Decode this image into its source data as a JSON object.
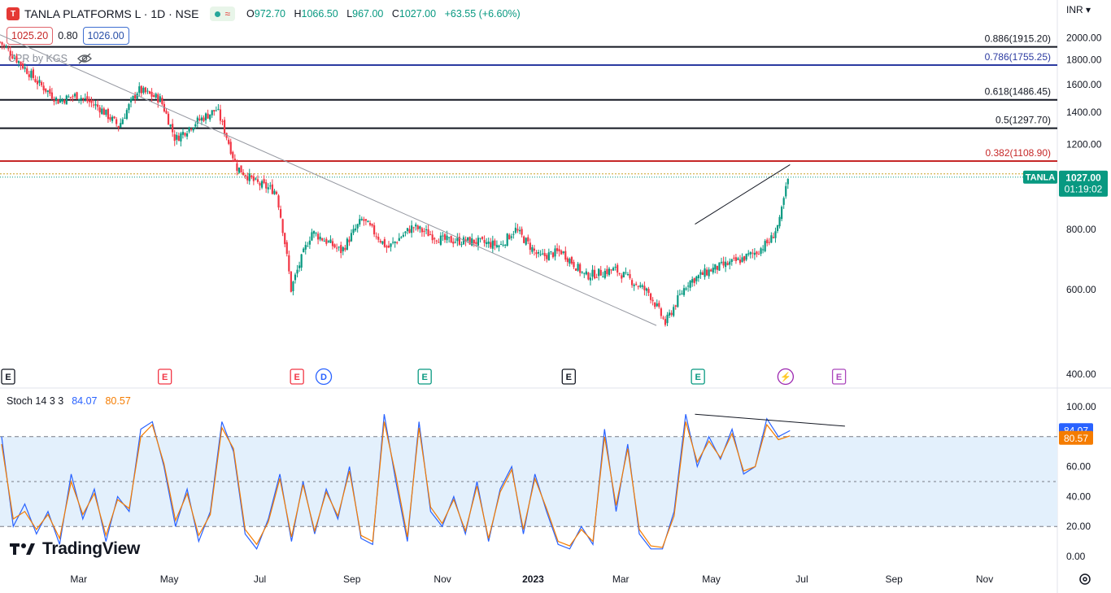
{
  "header": {
    "logo_glyph": "T",
    "symbol": "TANLA PLATFORMS L · 1D · NSE",
    "ohlc": [
      {
        "label": "O",
        "value": "972.70"
      },
      {
        "label": "H",
        "value": "1066.50"
      },
      {
        "label": "L",
        "value": "967.00"
      },
      {
        "label": "C",
        "value": "1027.00"
      }
    ],
    "change": "+63.55 (+6.60%)",
    "bid": "1025.20",
    "spread": "0.80",
    "ask": "1026.00",
    "indicator": "CPR by KGS",
    "currency": "INR"
  },
  "stoch_header": {
    "title": "Stoch 14 3 3",
    "k_value": "84.07",
    "d_value": "80.57"
  },
  "branding": "TradingView",
  "colors": {
    "up": "#089981",
    "down": "#f23645",
    "k": "#2962ff",
    "d": "#f57c00",
    "band": "#e3f0fc",
    "fib_blue": "#2b3aa1",
    "fib_red": "#c62828"
  },
  "chart_data": [
    {
      "type": "candlestick",
      "title": "TANLA PLATFORMS L · 1D · NSE",
      "ylim": [
        400,
        2200
      ],
      "y_ticks": [
        "2000.00",
        "1800.00",
        "1600.00",
        "1400.00",
        "1200.00",
        "800.00",
        "600.00",
        "400.00"
      ],
      "x_ticks": [
        "Mar",
        "May",
        "Jul",
        "Sep",
        "Nov",
        "2023",
        "Mar",
        "May",
        "Jul",
        "Sep",
        "Nov"
      ],
      "x_tick_dates": [
        "2022-03-01",
        "2022-05-01",
        "2022-07-01",
        "2022-09-01",
        "2022-11-01",
        "2023-01-01",
        "2023-03-01",
        "2023-05-01",
        "2023-07-01",
        "2023-09-01",
        "2023-11-01"
      ],
      "date_range": [
        "2022-01-07",
        "2023-12-20"
      ],
      "fib_levels": [
        {
          "label": "0.886(1915.20)",
          "value": 1915.2,
          "color": "#131722"
        },
        {
          "label": "0.786(1755.25)",
          "value": 1755.25,
          "color": "#2b3aa1"
        },
        {
          "label": "0.618(1486.45)",
          "value": 1486.45,
          "color": "#131722"
        },
        {
          "label": "0.5(1297.70)",
          "value": 1297.7,
          "color": "#131722"
        },
        {
          "label": "0.382(1108.90)",
          "value": 1108.9,
          "color": "#c62828"
        }
      ],
      "last_price": {
        "symbol_tag": "TANLA",
        "price": "1027.00",
        "countdown": "01:19:02",
        "value": 1027
      },
      "price_path": [
        {
          "date": "2022-01-07",
          "close": 1960
        },
        {
          "date": "2022-01-20",
          "close": 1780
        },
        {
          "date": "2022-02-01",
          "close": 1620
        },
        {
          "date": "2022-02-15",
          "close": 1480
        },
        {
          "date": "2022-02-28",
          "close": 1520
        },
        {
          "date": "2022-03-15",
          "close": 1430
        },
        {
          "date": "2022-03-28",
          "close": 1310
        },
        {
          "date": "2022-04-10",
          "close": 1560
        },
        {
          "date": "2022-04-25",
          "close": 1490
        },
        {
          "date": "2022-05-05",
          "close": 1230
        },
        {
          "date": "2022-05-18",
          "close": 1330
        },
        {
          "date": "2022-06-02",
          "close": 1420
        },
        {
          "date": "2022-06-15",
          "close": 1080
        },
        {
          "date": "2022-06-28",
          "close": 1000
        },
        {
          "date": "2022-07-12",
          "close": 960
        },
        {
          "date": "2022-07-22",
          "close": 600
        },
        {
          "date": "2022-08-05",
          "close": 790
        },
        {
          "date": "2022-08-25",
          "close": 720
        },
        {
          "date": "2022-09-08",
          "close": 840
        },
        {
          "date": "2022-09-25",
          "close": 730
        },
        {
          "date": "2022-10-12",
          "close": 810
        },
        {
          "date": "2022-11-01",
          "close": 760
        },
        {
          "date": "2022-11-22",
          "close": 755
        },
        {
          "date": "2022-12-10",
          "close": 740
        },
        {
          "date": "2022-12-20",
          "close": 800
        },
        {
          "date": "2023-01-05",
          "close": 700
        },
        {
          "date": "2023-01-20",
          "close": 720
        },
        {
          "date": "2023-02-05",
          "close": 640
        },
        {
          "date": "2023-02-25",
          "close": 660
        },
        {
          "date": "2023-03-20",
          "close": 590
        },
        {
          "date": "2023-03-31",
          "close": 510
        },
        {
          "date": "2023-04-15",
          "close": 620
        },
        {
          "date": "2023-05-01",
          "close": 660
        },
        {
          "date": "2023-05-20",
          "close": 690
        },
        {
          "date": "2023-06-01",
          "close": 720
        },
        {
          "date": "2023-06-10",
          "close": 760
        },
        {
          "date": "2023-06-16",
          "close": 830
        },
        {
          "date": "2023-06-22",
          "close": 1027
        }
      ],
      "drawings": [
        {
          "name": "trendline",
          "points": [
            {
              "date": "2022-01-07",
              "value": 2030
            },
            {
              "date": "2023-03-25",
              "value": 505
            }
          ]
        },
        {
          "name": "rising-line",
          "points": [
            {
              "date": "2023-04-20",
              "value": 820
            },
            {
              "date": "2023-06-23",
              "value": 1090
            }
          ]
        }
      ],
      "event_markers": [
        {
          "date": "2022-01-07",
          "letter": "E",
          "kind": "past"
        },
        {
          "date": "2022-04-28",
          "letter": "E",
          "kind": "neg"
        },
        {
          "date": "2022-07-26",
          "letter": "E",
          "kind": "neg"
        },
        {
          "date": "2022-08-13",
          "letter": "D",
          "kind": "div"
        },
        {
          "date": "2022-10-20",
          "letter": "E",
          "kind": "pos"
        },
        {
          "date": "2023-01-25",
          "letter": "E",
          "kind": "past"
        },
        {
          "date": "2023-04-22",
          "letter": "E",
          "kind": "pos"
        },
        {
          "date": "2023-06-20",
          "letter": "⚡",
          "kind": "split"
        },
        {
          "date": "2023-07-26",
          "letter": "E",
          "kind": "future"
        }
      ]
    },
    {
      "type": "line",
      "title": "Stoch 14 3 3",
      "ylim": [
        0,
        100
      ],
      "y_ticks": [
        "100.00",
        "80.00",
        "60.00",
        "40.00",
        "20.00",
        "0.00"
      ],
      "bands": {
        "upper": 80,
        "middle": 50,
        "lower": 20
      },
      "last_values": {
        "k": 84.07,
        "d": 80.57
      },
      "series": [
        {
          "name": "%K",
          "color": "#2962ff",
          "values": [
            80,
            20,
            35,
            15,
            30,
            8,
            55,
            25,
            45,
            10,
            40,
            30,
            85,
            90,
            60,
            20,
            45,
            10,
            30,
            90,
            70,
            15,
            5,
            25,
            55,
            10,
            50,
            15,
            45,
            25,
            60,
            12,
            8,
            95,
            50,
            10,
            90,
            30,
            20,
            40,
            15,
            50,
            10,
            45,
            60,
            15,
            55,
            30,
            8,
            5,
            20,
            8,
            85,
            30,
            75,
            15,
            5,
            5,
            30,
            95,
            60,
            80,
            65,
            85,
            55,
            60,
            92,
            80,
            84
          ]
        },
        {
          "name": "%D",
          "color": "#f57c00",
          "values": [
            75,
            25,
            30,
            18,
            28,
            12,
            50,
            28,
            42,
            14,
            38,
            32,
            80,
            88,
            62,
            24,
            42,
            14,
            28,
            86,
            72,
            18,
            8,
            23,
            52,
            13,
            48,
            17,
            43,
            27,
            57,
            14,
            10,
            90,
            54,
            13,
            86,
            33,
            22,
            38,
            17,
            47,
            12,
            43,
            58,
            18,
            52,
            32,
            10,
            7,
            18,
            10,
            80,
            34,
            72,
            18,
            7,
            6,
            27,
            90,
            63,
            77,
            66,
            82,
            57,
            60,
            88,
            78,
            80.57
          ]
        }
      ],
      "drawings": [
        {
          "name": "divergence-line",
          "points": [
            {
              "date": "2023-04-20",
              "value": 95
            },
            {
              "date": "2023-07-30",
              "value": 87
            }
          ]
        }
      ]
    }
  ]
}
